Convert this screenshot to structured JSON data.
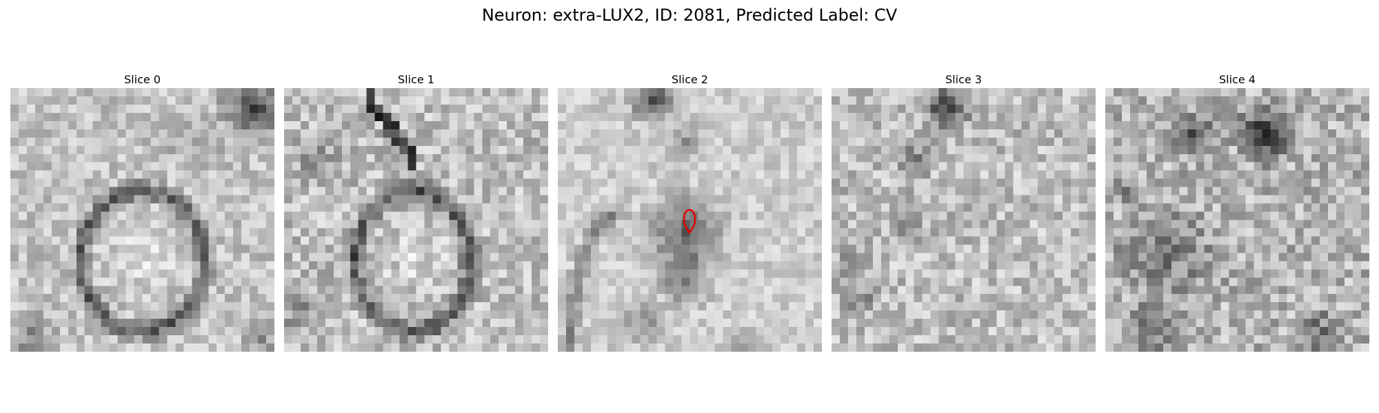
{
  "figure": {
    "title": "Neuron: extra-LUX2, ID: 2081, Predicted Label: CV"
  },
  "panels": [
    {
      "title": "Slice 0",
      "pattern": "membrane-ring",
      "marker": false
    },
    {
      "title": "Slice 1",
      "pattern": "membrane-ring-offset",
      "marker": false
    },
    {
      "title": "Slice 2",
      "pattern": "dark-blob",
      "marker": true
    },
    {
      "title": "Slice 3",
      "pattern": "noise-light",
      "marker": false
    },
    {
      "title": "Slice 4",
      "pattern": "noise-dark",
      "marker": false
    }
  ],
  "colors": {
    "marker": "#e00000",
    "background": "#ffffff"
  }
}
